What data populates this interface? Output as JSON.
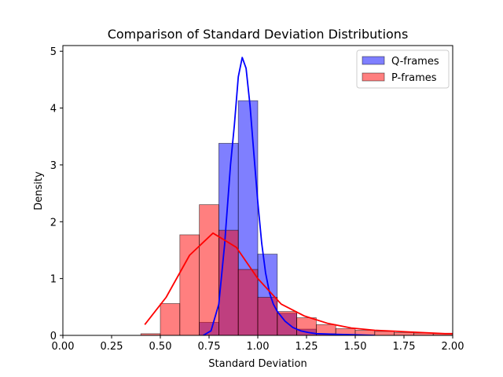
{
  "chart_data": {
    "type": "histogram",
    "title": "Comparison of Standard Deviation Distributions",
    "xlabel": "Standard Deviation",
    "ylabel": "Density",
    "xlim": [
      0.0,
      2.0
    ],
    "ylim": [
      0,
      5.1
    ],
    "xticks": [
      "0.00",
      "0.25",
      "0.50",
      "0.75",
      "1.00",
      "1.25",
      "1.50",
      "1.75",
      "2.00"
    ],
    "yticks": [
      "0",
      "1",
      "2",
      "3",
      "4",
      "5"
    ],
    "legend_position": "top-right",
    "series": [
      {
        "name": "Q-frames",
        "fill_color": "#0000ff",
        "line_color": "#0000ff",
        "fill_opacity": 0.5,
        "bins": [
          {
            "x0": 0.7,
            "x1": 0.8,
            "density": 0.23
          },
          {
            "x0": 0.8,
            "x1": 0.9,
            "density": 3.38
          },
          {
            "x0": 0.9,
            "x1": 1.0,
            "density": 4.13
          },
          {
            "x0": 1.0,
            "x1": 1.1,
            "density": 1.43
          },
          {
            "x0": 1.1,
            "x1": 1.2,
            "density": 0.39
          },
          {
            "x0": 1.2,
            "x1": 1.3,
            "density": 0.11
          },
          {
            "x0": 1.3,
            "x1": 1.4,
            "density": 0.03
          }
        ],
        "kde": {
          "x": [
            0.72,
            0.76,
            0.8,
            0.83,
            0.86,
            0.88,
            0.9,
            0.92,
            0.94,
            0.96,
            0.98,
            1.0,
            1.02,
            1.04,
            1.06,
            1.08,
            1.1,
            1.14,
            1.18,
            1.22,
            1.26,
            1.3,
            1.4,
            1.5,
            1.6
          ],
          "y": [
            0.0,
            0.08,
            0.55,
            1.6,
            3.0,
            3.7,
            4.55,
            4.89,
            4.7,
            4.05,
            3.2,
            2.35,
            1.62,
            1.1,
            0.75,
            0.55,
            0.42,
            0.25,
            0.14,
            0.08,
            0.05,
            0.03,
            0.02,
            0.01,
            0.0
          ]
        }
      },
      {
        "name": "P-frames",
        "fill_color": "#ff0000",
        "line_color": "#ff0000",
        "fill_opacity": 0.5,
        "bins": [
          {
            "x0": 0.4,
            "x1": 0.5,
            "density": 0.03
          },
          {
            "x0": 0.5,
            "x1": 0.6,
            "density": 0.56
          },
          {
            "x0": 0.6,
            "x1": 0.7,
            "density": 1.77
          },
          {
            "x0": 0.7,
            "x1": 0.8,
            "density": 2.3
          },
          {
            "x0": 0.8,
            "x1": 0.9,
            "density": 1.85
          },
          {
            "x0": 0.9,
            "x1": 1.0,
            "density": 1.16
          },
          {
            "x0": 1.0,
            "x1": 1.1,
            "density": 0.67
          },
          {
            "x0": 1.1,
            "x1": 1.2,
            "density": 0.42
          },
          {
            "x0": 1.2,
            "x1": 1.3,
            "density": 0.31
          },
          {
            "x0": 1.3,
            "x1": 1.4,
            "density": 0.19
          },
          {
            "x0": 1.4,
            "x1": 1.5,
            "density": 0.12
          },
          {
            "x0": 1.5,
            "x1": 1.6,
            "density": 0.09
          },
          {
            "x0": 1.6,
            "x1": 1.7,
            "density": 0.07
          },
          {
            "x0": 1.7,
            "x1": 1.8,
            "density": 0.05
          },
          {
            "x0": 1.8,
            "x1": 1.9,
            "density": 0.04
          },
          {
            "x0": 1.9,
            "x1": 2.0,
            "density": 0.03
          }
        ],
        "kde": {
          "x": [
            0.42,
            0.53,
            0.65,
            0.77,
            0.89,
            1.0,
            1.12,
            1.24,
            1.36,
            1.48,
            1.6,
            1.72,
            1.84,
            1.96,
            2.0
          ],
          "y": [
            0.19,
            0.67,
            1.41,
            1.8,
            1.55,
            1.0,
            0.55,
            0.34,
            0.21,
            0.13,
            0.09,
            0.07,
            0.05,
            0.03,
            0.03
          ]
        }
      }
    ]
  }
}
